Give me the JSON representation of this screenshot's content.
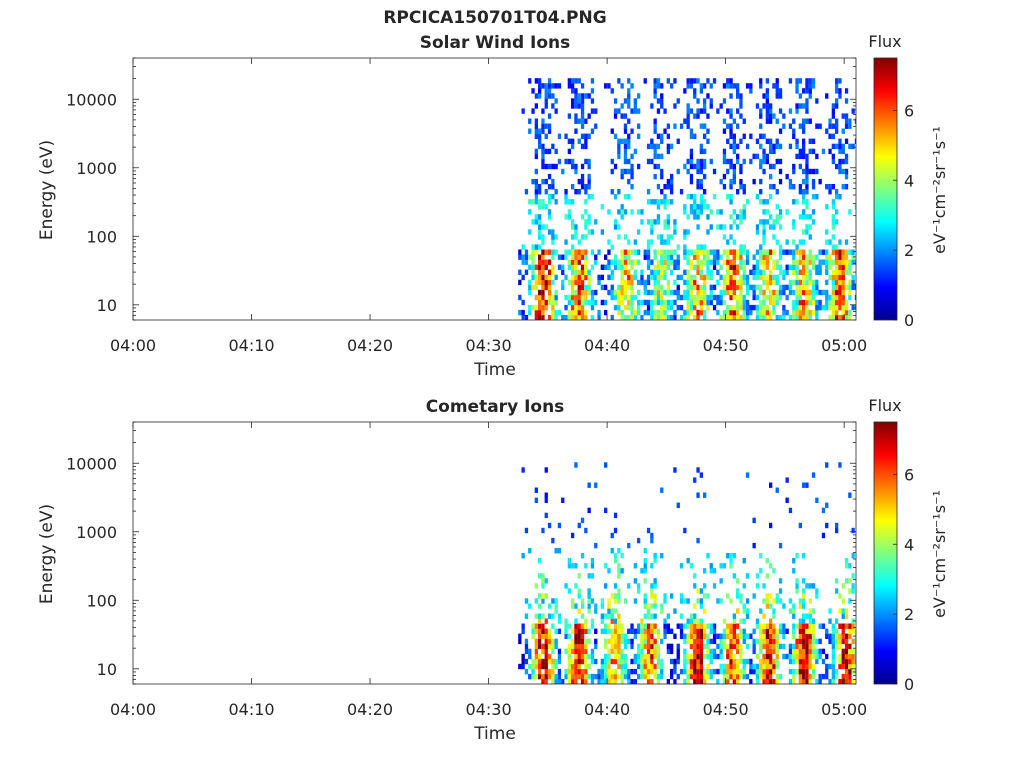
{
  "figure": {
    "title_line1": "RPCICA150701T04.PNG"
  },
  "colors": {
    "axis": "#262626",
    "colormap": "jet",
    "background": "#ffffff"
  },
  "chart_data": [
    {
      "type": "heatmap",
      "title": "Solar Wind Ions",
      "xlabel": "Time",
      "ylabel": "Energy (eV)",
      "x_ticks": [
        "04:00",
        "04:10",
        "04:20",
        "04:30",
        "04:40",
        "04:50",
        "05:00"
      ],
      "x_range": [
        "04:00",
        "05:01"
      ],
      "y_scale": "log",
      "y_ticks": [
        "10",
        "100",
        "1000",
        "10000"
      ],
      "y_range": [
        6,
        40000
      ],
      "grid": false,
      "colorbar": {
        "label_prefix": "Flux",
        "unit_label": "eV⁻¹cm⁻²sr⁻¹s⁻¹",
        "ticks": [
          "0",
          "2",
          "4",
          "6"
        ],
        "range": [
          0,
          7.5
        ]
      },
      "data_start": "04:32.5",
      "bursts": [
        {
          "center": "04:34.5",
          "peak_flux": 6.5
        },
        {
          "center": "04:37.5",
          "peak_flux": 5.8
        },
        {
          "center": "04:41.5",
          "peak_flux": 4.5
        },
        {
          "center": "04:44.5",
          "peak_flux": 3.8
        },
        {
          "center": "04:47.5",
          "peak_flux": 5.0
        },
        {
          "center": "04:50.5",
          "peak_flux": 5.5
        },
        {
          "center": "04:53.5",
          "peak_flux": 4.8
        },
        {
          "center": "04:56.5",
          "peak_flux": 5.0
        },
        {
          "center": "04:59.5",
          "peak_flux": 5.8
        }
      ],
      "features": "high-energy (200–20000 eV) blue flux at 1–3 and low-energy (10–50 eV) flux up to 6.5 in periodic bursts after 04:32"
    },
    {
      "type": "heatmap",
      "title": "Cometary Ions",
      "xlabel": "Time",
      "ylabel": "Energy (eV)",
      "x_ticks": [
        "04:00",
        "04:10",
        "04:20",
        "04:30",
        "04:40",
        "04:50",
        "05:00"
      ],
      "x_range": [
        "04:00",
        "05:01"
      ],
      "y_scale": "log",
      "y_ticks": [
        "10",
        "100",
        "1000",
        "10000"
      ],
      "y_range": [
        6,
        40000
      ],
      "grid": false,
      "colorbar": {
        "label_prefix": "Flux",
        "unit_label": "eV⁻¹cm⁻²sr⁻¹s⁻¹",
        "ticks": [
          "0",
          "2",
          "4",
          "6"
        ],
        "range": [
          0,
          7.5
        ]
      },
      "data_start": "04:32.5",
      "bursts": [
        {
          "center": "04:34.5",
          "peak_flux": 7.0
        },
        {
          "center": "04:37.5",
          "peak_flux": 6.8
        },
        {
          "center": "04:40.5",
          "peak_flux": 5.0
        },
        {
          "center": "04:43.5",
          "peak_flux": 5.5
        },
        {
          "center": "04:47.5",
          "peak_flux": 6.8
        },
        {
          "center": "04:50.5",
          "peak_flux": 6.0
        },
        {
          "center": "04:53.5",
          "peak_flux": 6.5
        },
        {
          "center": "04:56.5",
          "peak_flux": 6.8
        },
        {
          "center": "05:00",
          "peak_flux": 6.8
        }
      ],
      "features": "strong low-energy (10–40 eV) flux 5–7 with tails extending to ~500 eV; sparse high-energy points up to ~10000 eV"
    }
  ]
}
